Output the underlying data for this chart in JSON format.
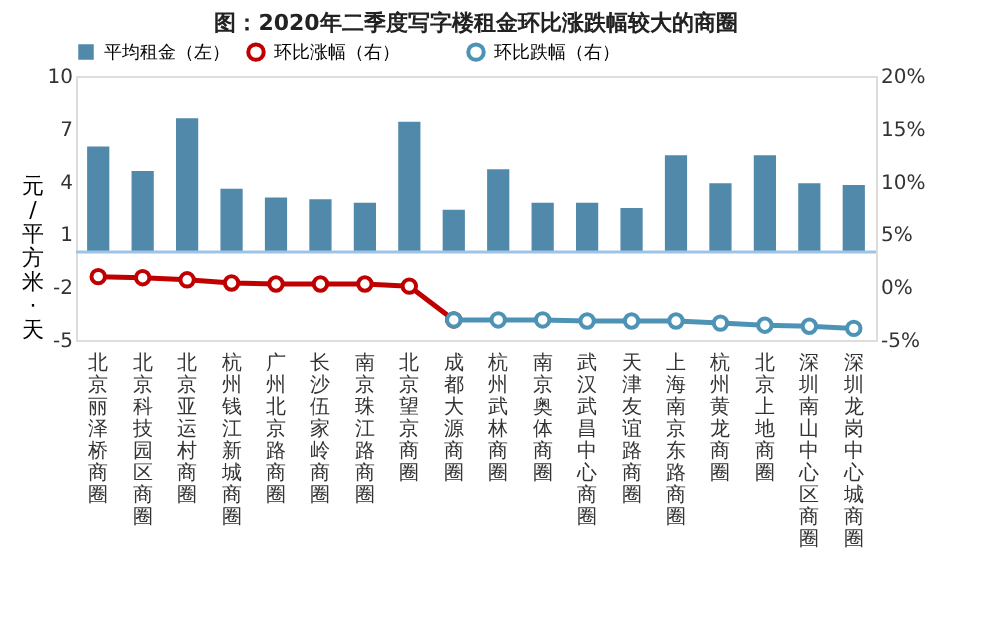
{
  "chart_data": {
    "type": "bar",
    "title": "图：2020年二季度写字楼租金环比涨跌幅较大的商圈",
    "ylabel": "元/平方米·天",
    "categories": [
      "北京丽泽桥商圈",
      "北京科技园区商圈",
      "北京亚运村商圈",
      "杭州钱江新城商圈",
      "广州北京路商圈",
      "长沙伍家岭商圈",
      "南京珠江路商圈",
      "北京望京商圈",
      "成都大源商圈",
      "杭州武林商圈",
      "南京奥体商圈",
      "武汉武昌中心商圈",
      "天津友谊路商圈",
      "上海南京东路商圈",
      "杭州黄龙商圈",
      "北京上地商圈",
      "深圳南山中心区商圈",
      "深圳龙岗中心城商圈"
    ],
    "series": [
      {
        "name": "平均租金（左）",
        "color": "#5189aa",
        "values": [
          6.0,
          4.6,
          7.6,
          3.6,
          3.1,
          3.0,
          2.8,
          7.4,
          2.4,
          4.7,
          2.8,
          2.8,
          2.5,
          5.5,
          3.9,
          5.5,
          3.9,
          3.8
        ]
      },
      {
        "name": "环比涨幅（右）",
        "type": "line",
        "axis": "y2",
        "color": "#c00000",
        "values": [
          1.0,
          0.9,
          0.7,
          0.4,
          0.3,
          0.3,
          0.3,
          0.1,
          -3.1,
          null,
          null,
          null,
          null,
          null,
          null,
          null,
          null,
          null
        ]
      },
      {
        "name": "环比跌幅（右）",
        "type": "line",
        "axis": "y2",
        "color": "#4d93b5",
        "values": [
          null,
          null,
          null,
          null,
          null,
          null,
          null,
          null,
          -3.1,
          -3.1,
          -3.1,
          -3.2,
          -3.2,
          -3.2,
          -3.4,
          -3.6,
          -3.7,
          -3.9
        ]
      }
    ],
    "ylim": [
      -5,
      10
    ],
    "yticks": [
      -5,
      -2,
      1,
      4,
      7,
      10
    ],
    "y2lim": [
      -5,
      20
    ],
    "y2ticks": [
      {
        "value": -5,
        "label": "-5%"
      },
      {
        "value": 0,
        "label": "0%"
      },
      {
        "value": 5,
        "label": "5%"
      },
      {
        "value": 10,
        "label": "10%"
      },
      {
        "value": 15,
        "label": "15%"
      },
      {
        "value": 20,
        "label": "20%"
      }
    ],
    "ref_lines": [
      {
        "axis": "y",
        "value": 0,
        "color": "#9dc3e6"
      }
    ],
    "marker": "circle",
    "line_style": "solid",
    "grid": false,
    "legend": "top"
  }
}
